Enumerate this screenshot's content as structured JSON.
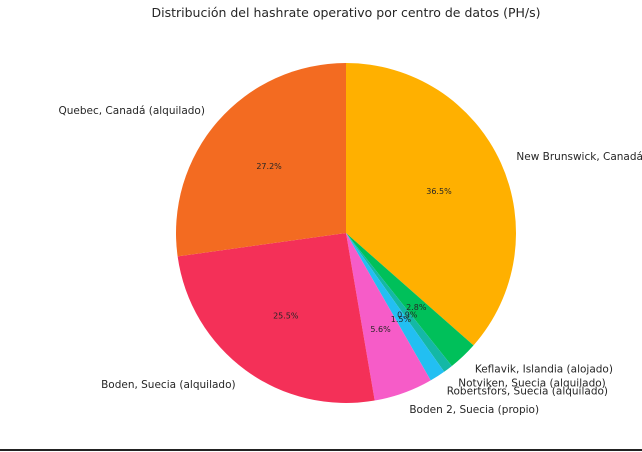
{
  "chart_data": {
    "type": "pie",
    "title": "Distribución del hashrate operativo por centro de datos (PH/s)",
    "start_angle_deg": 90,
    "direction": "clockwise",
    "slices": [
      {
        "label": "New Brunswick, Canadá (propio)",
        "percent": 36.5,
        "pct_label": "36.5%",
        "color": "#FFB000"
      },
      {
        "label": "Keflavik, Islandia (alojado)",
        "percent": 2.8,
        "pct_label": "2.8%",
        "color": "#00C05A"
      },
      {
        "label": "Notviken, Suecia (alquilado)",
        "percent": 0.9,
        "pct_label": "0.9%",
        "color": "#14B8A6"
      },
      {
        "label": "Robertsfors, Suecia (alquilado)",
        "percent": 1.5,
        "pct_label": "1.5%",
        "color": "#22BFF2"
      },
      {
        "label": "Boden 2, Suecia (propio)",
        "percent": 5.6,
        "pct_label": "5.6%",
        "color": "#F65CC8"
      },
      {
        "label": "Boden, Suecia (alquilado)",
        "percent": 25.5,
        "pct_label": "25.5%",
        "color": "#F43058"
      },
      {
        "label": "Quebec, Canadá (alquilado)",
        "percent": 27.2,
        "pct_label": "27.2%",
        "color": "#F36B21"
      }
    ]
  }
}
